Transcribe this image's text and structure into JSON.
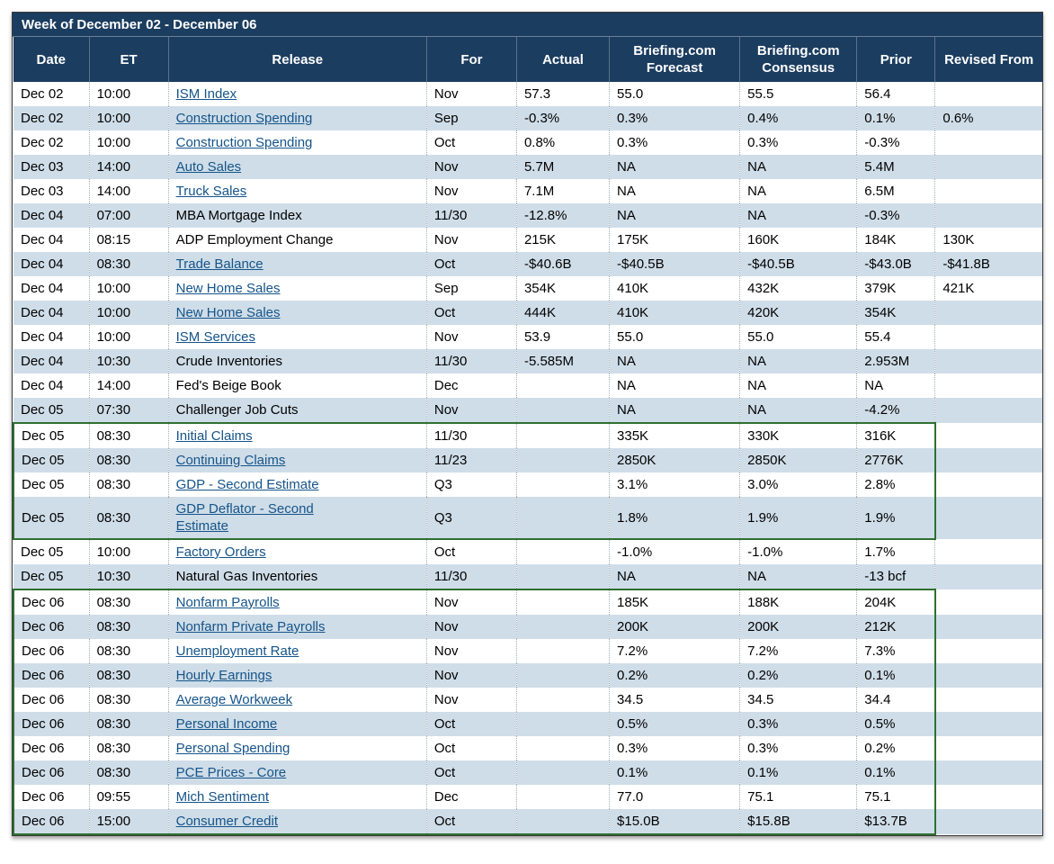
{
  "title": "Week of December 02 - December 06",
  "colors": {
    "header_bg": "#1b3d60",
    "row_alt": "#cfdde8",
    "link": "#15548a",
    "highlight": "#2f7030",
    "border": "#3a3a3a"
  },
  "columns": [
    {
      "key": "date",
      "label": "Date"
    },
    {
      "key": "et",
      "label": "ET"
    },
    {
      "key": "release",
      "label": "Release"
    },
    {
      "key": "for",
      "label": "For"
    },
    {
      "key": "actual",
      "label": "Actual"
    },
    {
      "key": "forecast",
      "label": "Briefing.com Forecast"
    },
    {
      "key": "consensus",
      "label": "Briefing.com Consensus"
    },
    {
      "key": "prior",
      "label": "Prior"
    },
    {
      "key": "revised",
      "label": "Revised From"
    }
  ],
  "highlight_groups": [
    {
      "start": 14,
      "end": 17
    },
    {
      "start": 20,
      "end": 29
    }
  ],
  "rows": [
    {
      "date": "Dec 02",
      "et": "10:00",
      "release": "ISM Index",
      "link": true,
      "for": "Nov",
      "actual": "57.3",
      "forecast": "55.0",
      "consensus": "55.5",
      "prior": "56.4",
      "revised": ""
    },
    {
      "date": "Dec 02",
      "et": "10:00",
      "release": "Construction Spending",
      "link": true,
      "for": "Sep",
      "actual": "-0.3%",
      "forecast": "0.3%",
      "consensus": "0.4%",
      "prior": "0.1%",
      "revised": "0.6%"
    },
    {
      "date": "Dec 02",
      "et": "10:00",
      "release": "Construction Spending",
      "link": true,
      "for": "Oct",
      "actual": "0.8%",
      "forecast": "0.3%",
      "consensus": "0.3%",
      "prior": "-0.3%",
      "revised": ""
    },
    {
      "date": "Dec 03",
      "et": "14:00",
      "release": "Auto Sales",
      "link": true,
      "for": "Nov",
      "actual": "5.7M",
      "forecast": "NA",
      "consensus": "NA",
      "prior": "5.4M",
      "revised": ""
    },
    {
      "date": "Dec 03",
      "et": "14:00",
      "release": "Truck Sales",
      "link": true,
      "for": "Nov",
      "actual": "7.1M",
      "forecast": "NA",
      "consensus": "NA",
      "prior": "6.5M",
      "revised": ""
    },
    {
      "date": "Dec 04",
      "et": "07:00",
      "release": "MBA Mortgage Index",
      "link": false,
      "for": "11/30",
      "actual": "-12.8%",
      "forecast": "NA",
      "consensus": "NA",
      "prior": "-0.3%",
      "revised": ""
    },
    {
      "date": "Dec 04",
      "et": "08:15",
      "release": "ADP Employment Change",
      "link": false,
      "for": "Nov",
      "actual": "215K",
      "forecast": "175K",
      "consensus": "160K",
      "prior": "184K",
      "revised": "130K"
    },
    {
      "date": "Dec 04",
      "et": "08:30",
      "release": "Trade Balance",
      "link": true,
      "for": "Oct",
      "actual": "-$40.6B",
      "forecast": "-$40.5B",
      "consensus": "-$40.5B",
      "prior": "-$43.0B",
      "revised": "-$41.8B"
    },
    {
      "date": "Dec 04",
      "et": "10:00",
      "release": "New Home Sales",
      "link": true,
      "for": "Sep",
      "actual": "354K",
      "forecast": "410K",
      "consensus": "432K",
      "prior": "379K",
      "revised": "421K"
    },
    {
      "date": "Dec 04",
      "et": "10:00",
      "release": "New Home Sales",
      "link": true,
      "for": "Oct",
      "actual": "444K",
      "forecast": "410K",
      "consensus": "420K",
      "prior": "354K",
      "revised": ""
    },
    {
      "date": "Dec 04",
      "et": "10:00",
      "release": "ISM Services",
      "link": true,
      "for": "Nov",
      "actual": "53.9",
      "forecast": "55.0",
      "consensus": "55.0",
      "prior": "55.4",
      "revised": ""
    },
    {
      "date": "Dec 04",
      "et": "10:30",
      "release": "Crude Inventories",
      "link": false,
      "for": "11/30",
      "actual": "-5.585M",
      "forecast": "NA",
      "consensus": "NA",
      "prior": "2.953M",
      "revised": ""
    },
    {
      "date": "Dec 04",
      "et": "14:00",
      "release": "Fed's Beige Book",
      "link": false,
      "for": "Dec",
      "actual": "",
      "forecast": "NA",
      "consensus": "NA",
      "prior": "NA",
      "revised": ""
    },
    {
      "date": "Dec 05",
      "et": "07:30",
      "release": "Challenger Job Cuts",
      "link": false,
      "for": "Nov",
      "actual": "",
      "forecast": "NA",
      "consensus": "NA",
      "prior": "-4.2%",
      "revised": ""
    },
    {
      "date": "Dec 05",
      "et": "08:30",
      "release": "Initial Claims",
      "link": true,
      "for": "11/30",
      "actual": "",
      "forecast": "335K",
      "consensus": "330K",
      "prior": "316K",
      "revised": ""
    },
    {
      "date": "Dec 05",
      "et": "08:30",
      "release": "Continuing Claims",
      "link": true,
      "for": "11/23",
      "actual": "",
      "forecast": "2850K",
      "consensus": "2850K",
      "prior": "2776K",
      "revised": ""
    },
    {
      "date": "Dec 05",
      "et": "08:30",
      "release": "GDP - Second Estimate",
      "link": true,
      "for": "Q3",
      "actual": "",
      "forecast": "3.1%",
      "consensus": "3.0%",
      "prior": "2.8%",
      "revised": ""
    },
    {
      "date": "Dec 05",
      "et": "08:30",
      "release": "GDP Deflator - Second Estimate",
      "link": true,
      "wrap": true,
      "for": "Q3",
      "actual": "",
      "forecast": "1.8%",
      "consensus": "1.9%",
      "prior": "1.9%",
      "revised": ""
    },
    {
      "date": "Dec 05",
      "et": "10:00",
      "release": "Factory Orders",
      "link": true,
      "for": "Oct",
      "actual": "",
      "forecast": "-1.0%",
      "consensus": "-1.0%",
      "prior": "1.7%",
      "revised": ""
    },
    {
      "date": "Dec 05",
      "et": "10:30",
      "release": "Natural Gas Inventories",
      "link": false,
      "for": "11/30",
      "actual": "",
      "forecast": "NA",
      "consensus": "NA",
      "prior": "-13 bcf",
      "revised": ""
    },
    {
      "date": "Dec 06",
      "et": "08:30",
      "release": "Nonfarm Payrolls",
      "link": true,
      "for": "Nov",
      "actual": "",
      "forecast": "185K",
      "consensus": "188K",
      "prior": "204K",
      "revised": ""
    },
    {
      "date": "Dec 06",
      "et": "08:30",
      "release": "Nonfarm Private Payrolls",
      "link": true,
      "for": "Nov",
      "actual": "",
      "forecast": "200K",
      "consensus": "200K",
      "prior": "212K",
      "revised": ""
    },
    {
      "date": "Dec 06",
      "et": "08:30",
      "release": "Unemployment Rate",
      "link": true,
      "for": "Nov",
      "actual": "",
      "forecast": "7.2%",
      "consensus": "7.2%",
      "prior": "7.3%",
      "revised": ""
    },
    {
      "date": "Dec 06",
      "et": "08:30",
      "release": "Hourly Earnings",
      "link": true,
      "for": "Nov",
      "actual": "",
      "forecast": "0.2%",
      "consensus": "0.2%",
      "prior": "0.1%",
      "revised": ""
    },
    {
      "date": "Dec 06",
      "et": "08:30",
      "release": "Average Workweek",
      "link": true,
      "for": "Nov",
      "actual": "",
      "forecast": "34.5",
      "consensus": "34.5",
      "prior": "34.4",
      "revised": ""
    },
    {
      "date": "Dec 06",
      "et": "08:30",
      "release": "Personal Income",
      "link": true,
      "for": "Oct",
      "actual": "",
      "forecast": "0.5%",
      "consensus": "0.3%",
      "prior": "0.5%",
      "revised": ""
    },
    {
      "date": "Dec 06",
      "et": "08:30",
      "release": "Personal Spending",
      "link": true,
      "for": "Oct",
      "actual": "",
      "forecast": "0.3%",
      "consensus": "0.3%",
      "prior": "0.2%",
      "revised": ""
    },
    {
      "date": "Dec 06",
      "et": "08:30",
      "release": "PCE Prices - Core",
      "link": true,
      "for": "Oct",
      "actual": "",
      "forecast": "0.1%",
      "consensus": "0.1%",
      "prior": "0.1%",
      "revised": ""
    },
    {
      "date": "Dec 06",
      "et": "09:55",
      "release": "Mich Sentiment",
      "link": true,
      "for": "Dec",
      "actual": "",
      "forecast": "77.0",
      "consensus": "75.1",
      "prior": "75.1",
      "revised": ""
    },
    {
      "date": "Dec 06",
      "et": "15:00",
      "release": "Consumer Credit",
      "link": true,
      "for": "Oct",
      "actual": "",
      "forecast": "$15.0B",
      "consensus": "$15.8B",
      "prior": "$13.7B",
      "revised": ""
    }
  ]
}
